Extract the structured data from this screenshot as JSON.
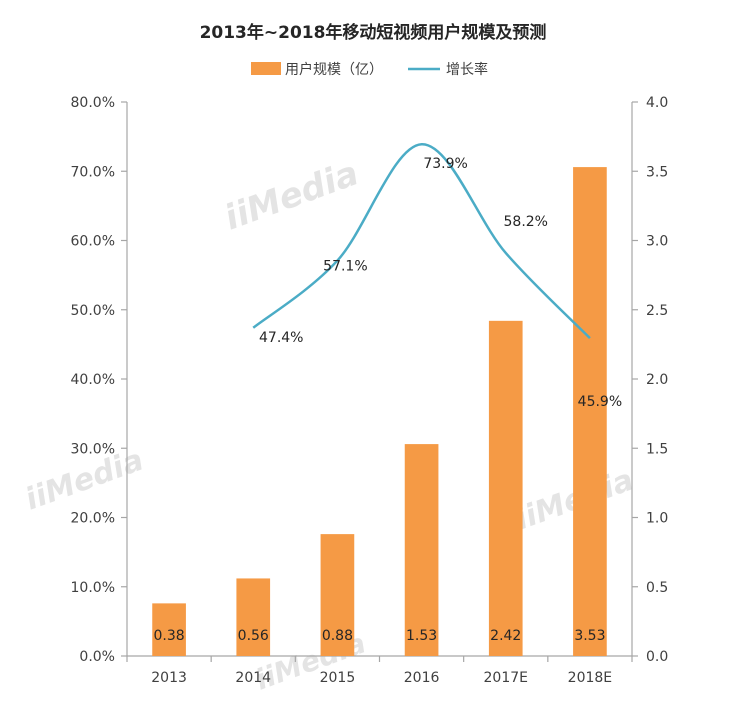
{
  "chart_data": {
    "type": "bar+line",
    "title": "2013年~2018年移动短视频用户规模及预测",
    "categories": [
      "2013",
      "2014",
      "2015",
      "2016",
      "2017E",
      "2018E"
    ],
    "series": [
      {
        "name": "用户规模（亿）",
        "type": "bar",
        "axis": "right",
        "values": [
          0.38,
          0.56,
          0.88,
          1.53,
          2.42,
          3.53
        ],
        "labels": [
          "0.38",
          "0.56",
          "0.88",
          "1.53",
          "2.42",
          "3.53"
        ],
        "color": "#f59a45"
      },
      {
        "name": "增长率",
        "type": "line",
        "axis": "left",
        "values": [
          null,
          47.4,
          57.1,
          73.9,
          58.2,
          45.9
        ],
        "labels": [
          "",
          "47.4%",
          "57.1%",
          "73.9%",
          "58.2%",
          "45.9%"
        ],
        "color": "#4bacc6"
      }
    ],
    "y_left": {
      "range": [
        0,
        80
      ],
      "ticks": [
        "0.0%",
        "10.0%",
        "20.0%",
        "30.0%",
        "40.0%",
        "50.0%",
        "60.0%",
        "70.0%",
        "80.0%"
      ]
    },
    "y_right": {
      "range": [
        0,
        4
      ],
      "ticks": [
        "0.0",
        "0.5",
        "1.0",
        "1.5",
        "2.0",
        "2.5",
        "3.0",
        "3.5",
        "4.0"
      ]
    },
    "legend_position": "top",
    "grid": false
  },
  "watermark": "iiMedia"
}
